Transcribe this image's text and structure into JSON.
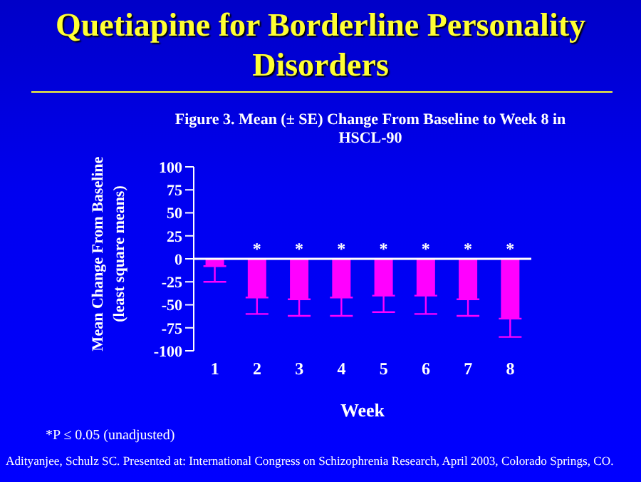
{
  "chart_data": {
    "type": "bar",
    "title": "Quetiapine for Borderline Personality Disorders",
    "subtitle": "Figure 3. Mean (± SE) Change From Baseline to Week 8 in HSCL-90",
    "xlabel": "Week",
    "ylabel": "Mean Change From Baseline (least square means)",
    "categories": [
      "1",
      "2",
      "3",
      "4",
      "5",
      "6",
      "7",
      "8"
    ],
    "values": [
      -8,
      -42,
      -44,
      -42,
      -40,
      -40,
      -44,
      -65
    ],
    "errors": [
      [
        -25,
        -8
      ],
      [
        -60,
        -42
      ],
      [
        -62,
        -44
      ],
      [
        -62,
        -42
      ],
      [
        -58,
        -40
      ],
      [
        -60,
        -40
      ],
      [
        -62,
        -44
      ],
      [
        -85,
        -65
      ]
    ],
    "color": "#ff00ff",
    "ylim": [
      -100,
      100
    ],
    "yticks": [
      -100,
      -75,
      -50,
      -25,
      0,
      25,
      50,
      75,
      100
    ],
    "value_labels": [
      null,
      "*",
      "*",
      "*",
      "*",
      "*",
      "*",
      "*"
    ],
    "annotations": [
      "*P ≤ 0.05 (unadjusted)",
      "Adityanjee, Schulz SC. Presented at: International Congress on Schizophrenia Research, April 2003, Colorado Springs, CO."
    ]
  }
}
